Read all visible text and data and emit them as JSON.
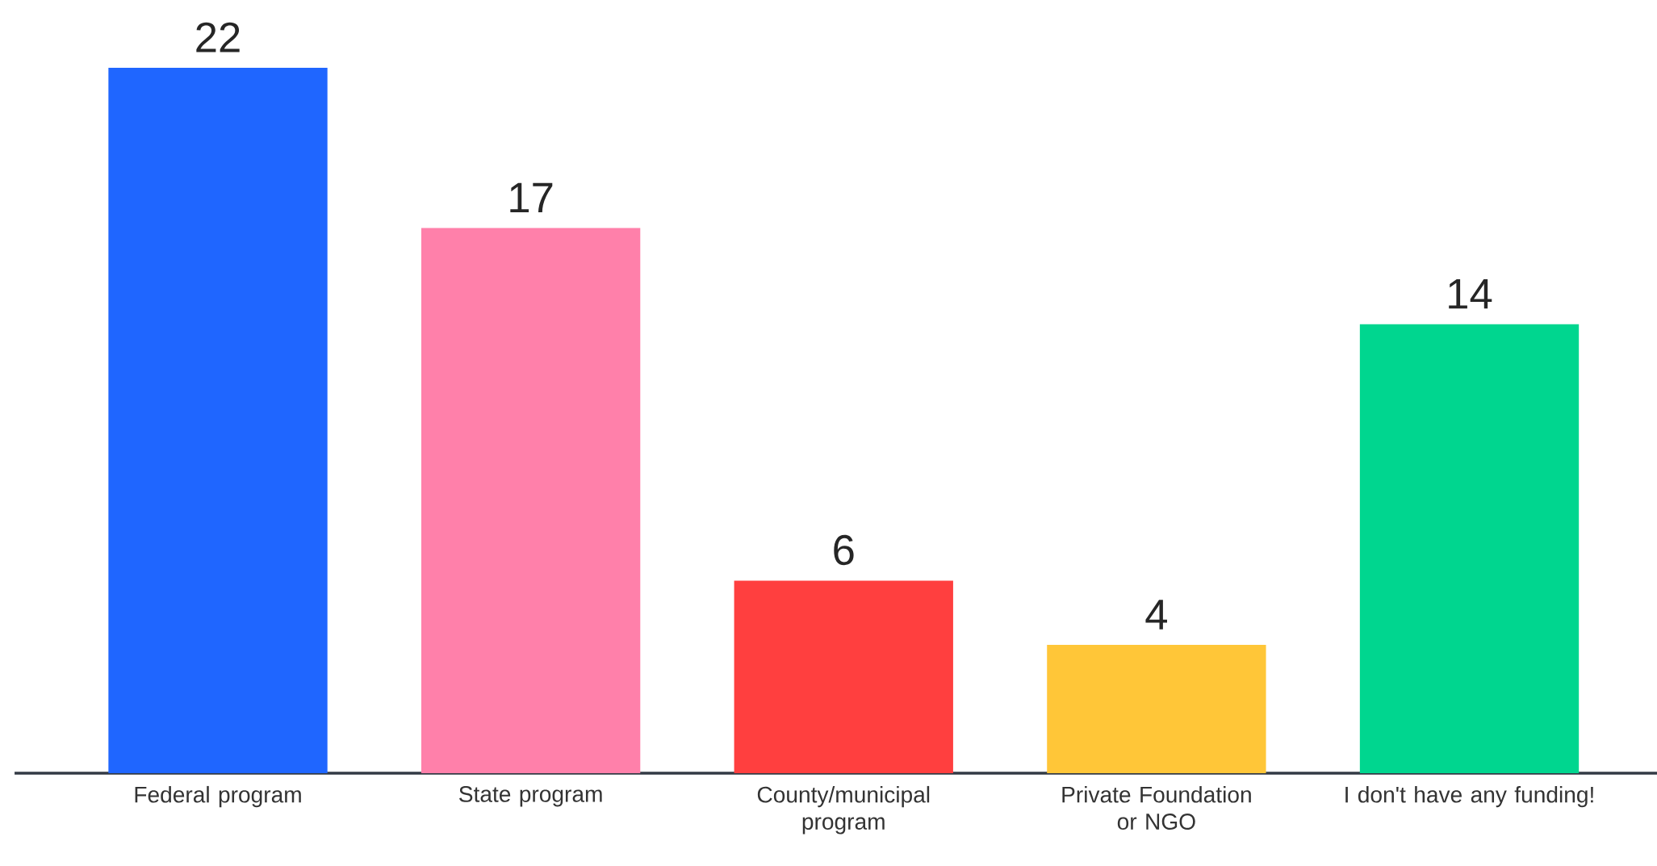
{
  "chart_data": {
    "type": "bar",
    "categories": [
      "Federal program",
      "State program",
      "County/municipal program",
      "Private Foundation or NGO",
      "I don't have any funding!"
    ],
    "values": [
      22,
      17,
      6,
      4,
      14
    ],
    "colors": [
      "#1f66ff",
      "#ff80aa",
      "#ff3f3f",
      "#ffc638",
      "#00d68f"
    ],
    "data_labels": true
  }
}
